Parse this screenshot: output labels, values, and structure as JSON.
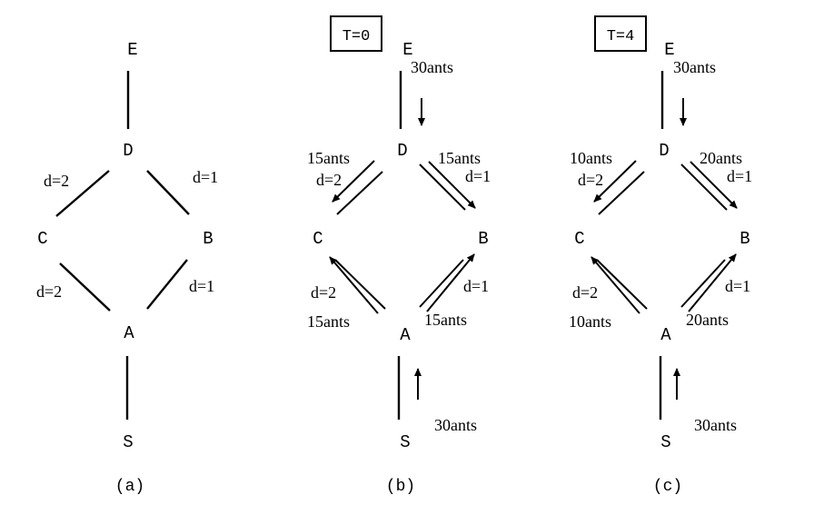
{
  "panels": {
    "a": {
      "caption": "(a)",
      "nodes": {
        "E": "E",
        "D": "D",
        "C": "C",
        "B": "B",
        "A": "A",
        "S": "S"
      },
      "edges": {
        "DC": "d=2",
        "DB": "d=1",
        "CA": "d=2",
        "BA": "d=1"
      }
    },
    "b": {
      "caption": "(b)",
      "time_box": "T=0",
      "nodes": {
        "E": "E",
        "D": "D",
        "C": "C",
        "B": "B",
        "A": "A",
        "S": "S"
      },
      "edges": {
        "DC": "d=2",
        "DB": "d=1",
        "CA": "d=2",
        "BA": "d=1"
      },
      "flows": {
        "E_to_D": "30ants",
        "D_to_C": "15ants",
        "D_to_B": "15ants",
        "A_to_C": "15ants",
        "A_to_B": "15ants",
        "S_to_A": "30ants"
      }
    },
    "c": {
      "caption": "(c)",
      "time_box": "T=4",
      "nodes": {
        "E": "E",
        "D": "D",
        "C": "C",
        "B": "B",
        "A": "A",
        "S": "S"
      },
      "edges": {
        "DC": "d=2",
        "DB": "d=1",
        "CA": "d=2",
        "BA": "d=1"
      },
      "flows": {
        "E_to_D": "30ants",
        "D_to_C": "10ants",
        "D_to_B": "20ants",
        "A_to_C": "10ants",
        "A_to_B": "20ants",
        "S_to_A": "30ants"
      }
    }
  }
}
